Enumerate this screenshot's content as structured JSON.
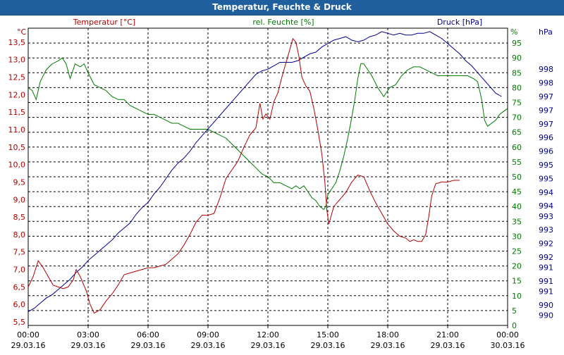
{
  "window": {
    "title": "Temperatur, Feuchte & Druck"
  },
  "chart_data": {
    "type": "line",
    "title": "Temperatur, Feuchte & Druck",
    "grid": true,
    "x": {
      "range": [
        "29.03.16 00:00",
        "30.03.16 00:00"
      ],
      "ticks": [
        {
          "time": "00:00",
          "date": "29.03.16"
        },
        {
          "time": "03:00",
          "date": "29.03.16"
        },
        {
          "time": "06:00",
          "date": "29.03.16"
        },
        {
          "time": "09:00",
          "date": "29.03.16"
        },
        {
          "time": "12:00",
          "date": "29.03.16"
        },
        {
          "time": "15:00",
          "date": "29.03.16"
        },
        {
          "time": "18:00",
          "date": "29.03.16"
        },
        {
          "time": "21:00",
          "date": "29.03.16"
        },
        {
          "time": "00:00",
          "date": "30.03.16"
        }
      ]
    },
    "axes": {
      "left": {
        "label": "Temperatur [°C]",
        "unit": "°C",
        "min": 5.4,
        "max": 13.9,
        "ticks": [
          "5,5",
          "6,0",
          "6,5",
          "7,0",
          "7,5",
          "8,0",
          "8,5",
          "9,0",
          "9,5",
          "10,0",
          "10,5",
          "11,0",
          "11,5",
          "12,0",
          "12,5",
          "13,0",
          "13,5"
        ],
        "tick_values": [
          5.5,
          6.0,
          6.5,
          7.0,
          7.5,
          8.0,
          8.5,
          9.0,
          9.5,
          10.0,
          10.5,
          11.0,
          11.5,
          12.0,
          12.5,
          13.0,
          13.5
        ],
        "color": "#b00000"
      },
      "middle": {
        "label": "rel. Feuchte [%]",
        "unit": "%",
        "min": 0,
        "max": 100,
        "ticks": [
          "0",
          "5",
          "10",
          "15",
          "20",
          "25",
          "30",
          "35",
          "40",
          "45",
          "50",
          "55",
          "60",
          "65",
          "70",
          "75",
          "80",
          "85",
          "90",
          "95"
        ],
        "tick_values": [
          0,
          5,
          10,
          15,
          20,
          25,
          30,
          35,
          40,
          45,
          50,
          55,
          60,
          65,
          70,
          75,
          80,
          85,
          90,
          95
        ],
        "color": "#007a00"
      },
      "right": {
        "label": "Druck [hPa]",
        "unit": "hPa",
        "min": 989.6,
        "max": 998.3,
        "ticks": [
          "990",
          "990",
          "991",
          "991",
          "991",
          "992",
          "992",
          "993",
          "993",
          "994",
          "994",
          "995",
          "995",
          "996",
          "996",
          "997",
          "997",
          "997",
          "998",
          "998"
        ],
        "tick_values": [
          989.9,
          990.2,
          990.6,
          990.9,
          991.3,
          991.6,
          992.0,
          992.4,
          992.8,
          993.1,
          993.5,
          993.9,
          994.3,
          994.7,
          995.1,
          995.5,
          995.9,
          996.3,
          996.7,
          997.1
        ],
        "color": "#00008b"
      }
    },
    "series": [
      {
        "name": "Temperatur [°C]",
        "axis": "left",
        "color": "#b00000",
        "points": [
          [
            0,
            6.5
          ],
          [
            0.25,
            6.8
          ],
          [
            0.5,
            7.25
          ],
          [
            0.75,
            7.05
          ],
          [
            1.0,
            6.8
          ],
          [
            1.25,
            6.55
          ],
          [
            1.5,
            6.5
          ],
          [
            1.75,
            6.45
          ],
          [
            2.0,
            6.5
          ],
          [
            2.25,
            6.7
          ],
          [
            2.4,
            7.0
          ],
          [
            2.6,
            6.8
          ],
          [
            2.9,
            6.4
          ],
          [
            3.1,
            6.0
          ],
          [
            3.3,
            5.75
          ],
          [
            3.6,
            5.85
          ],
          [
            3.9,
            6.1
          ],
          [
            4.2,
            6.3
          ],
          [
            4.5,
            6.55
          ],
          [
            4.8,
            6.85
          ],
          [
            5.1,
            6.9
          ],
          [
            5.4,
            6.95
          ],
          [
            5.7,
            7.0
          ],
          [
            6.0,
            7.05
          ],
          [
            6.3,
            7.05
          ],
          [
            6.6,
            7.1
          ],
          [
            6.9,
            7.15
          ],
          [
            7.2,
            7.3
          ],
          [
            7.5,
            7.45
          ],
          [
            7.8,
            7.7
          ],
          [
            8.1,
            8.0
          ],
          [
            8.4,
            8.35
          ],
          [
            8.7,
            8.55
          ],
          [
            9.0,
            8.55
          ],
          [
            9.3,
            8.6
          ],
          [
            9.6,
            9.05
          ],
          [
            9.9,
            9.6
          ],
          [
            10.2,
            9.85
          ],
          [
            10.5,
            10.1
          ],
          [
            10.8,
            10.5
          ],
          [
            11.1,
            10.85
          ],
          [
            11.4,
            11.05
          ],
          [
            11.6,
            11.75
          ],
          [
            11.75,
            11.3
          ],
          [
            11.9,
            11.45
          ],
          [
            12.1,
            11.3
          ],
          [
            12.3,
            11.8
          ],
          [
            12.5,
            12.05
          ],
          [
            12.7,
            12.5
          ],
          [
            12.9,
            12.9
          ],
          [
            13.1,
            13.3
          ],
          [
            13.25,
            13.6
          ],
          [
            13.4,
            13.5
          ],
          [
            13.55,
            13.1
          ],
          [
            13.7,
            12.5
          ],
          [
            13.9,
            12.25
          ],
          [
            14.1,
            12.1
          ],
          [
            14.3,
            11.6
          ],
          [
            14.5,
            11.0
          ],
          [
            14.7,
            10.3
          ],
          [
            14.85,
            9.5
          ],
          [
            14.95,
            8.7
          ],
          [
            15.05,
            8.3
          ],
          [
            15.3,
            8.8
          ],
          [
            15.6,
            9.0
          ],
          [
            15.9,
            9.2
          ],
          [
            16.2,
            9.5
          ],
          [
            16.5,
            9.7
          ],
          [
            16.8,
            9.65
          ],
          [
            17.1,
            9.25
          ],
          [
            17.4,
            8.9
          ],
          [
            17.7,
            8.6
          ],
          [
            18.0,
            8.3
          ],
          [
            18.3,
            8.1
          ],
          [
            18.6,
            7.95
          ],
          [
            18.9,
            7.9
          ],
          [
            19.1,
            7.8
          ],
          [
            19.3,
            7.85
          ],
          [
            19.5,
            7.8
          ],
          [
            19.7,
            7.8
          ],
          [
            19.9,
            8.0
          ],
          [
            20.05,
            8.5
          ],
          [
            20.2,
            9.1
          ],
          [
            20.4,
            9.45
          ],
          [
            20.7,
            9.5
          ],
          [
            21.0,
            9.5
          ],
          [
            21.3,
            9.55
          ],
          [
            21.6,
            9.55
          ]
        ]
      },
      {
        "name": "rel. Feuchte [%]",
        "axis": "middle",
        "color": "#007a00",
        "points": [
          [
            0,
            80
          ],
          [
            0.2,
            79
          ],
          [
            0.4,
            76
          ],
          [
            0.6,
            82
          ],
          [
            0.9,
            86
          ],
          [
            1.2,
            88
          ],
          [
            1.5,
            89
          ],
          [
            1.7,
            90
          ],
          [
            1.9,
            88
          ],
          [
            2.1,
            83
          ],
          [
            2.35,
            88
          ],
          [
            2.6,
            87
          ],
          [
            2.8,
            88
          ],
          [
            3.0,
            85
          ],
          [
            3.3,
            81
          ],
          [
            3.6,
            80
          ],
          [
            3.9,
            79
          ],
          [
            4.2,
            77
          ],
          [
            4.5,
            76
          ],
          [
            4.8,
            76
          ],
          [
            5.1,
            74
          ],
          [
            5.4,
            73
          ],
          [
            5.7,
            72
          ],
          [
            6.0,
            71
          ],
          [
            6.3,
            71
          ],
          [
            6.6,
            70
          ],
          [
            6.9,
            69
          ],
          [
            7.2,
            68
          ],
          [
            7.5,
            68
          ],
          [
            7.8,
            67
          ],
          [
            8.1,
            66
          ],
          [
            8.4,
            66
          ],
          [
            8.7,
            66
          ],
          [
            9.0,
            66
          ],
          [
            9.3,
            65
          ],
          [
            9.6,
            64
          ],
          [
            9.9,
            63
          ],
          [
            10.2,
            61
          ],
          [
            10.5,
            59
          ],
          [
            10.8,
            57
          ],
          [
            11.1,
            55
          ],
          [
            11.4,
            53
          ],
          [
            11.7,
            51
          ],
          [
            12.0,
            50
          ],
          [
            12.3,
            48
          ],
          [
            12.6,
            48
          ],
          [
            12.9,
            47
          ],
          [
            13.2,
            46
          ],
          [
            13.4,
            47
          ],
          [
            13.6,
            46
          ],
          [
            13.8,
            47
          ],
          [
            14.0,
            45
          ],
          [
            14.2,
            43
          ],
          [
            14.4,
            42
          ],
          [
            14.6,
            40
          ],
          [
            14.8,
            39
          ],
          [
            14.9,
            40
          ],
          [
            15.0,
            44
          ],
          [
            15.2,
            46
          ],
          [
            15.4,
            48
          ],
          [
            15.6,
            52
          ],
          [
            15.8,
            57
          ],
          [
            16.0,
            63
          ],
          [
            16.2,
            70
          ],
          [
            16.35,
            76
          ],
          [
            16.5,
            83
          ],
          [
            16.65,
            88
          ],
          [
            16.8,
            88
          ],
          [
            17.0,
            86
          ],
          [
            17.2,
            84
          ],
          [
            17.5,
            80
          ],
          [
            17.8,
            77
          ],
          [
            18.1,
            80
          ],
          [
            18.4,
            81
          ],
          [
            18.7,
            84
          ],
          [
            19.0,
            86
          ],
          [
            19.3,
            87
          ],
          [
            19.6,
            87
          ],
          [
            19.9,
            86
          ],
          [
            20.2,
            85
          ],
          [
            20.5,
            84
          ],
          [
            20.8,
            84
          ],
          [
            21.1,
            84
          ],
          [
            21.4,
            84
          ],
          [
            21.7,
            84
          ],
          [
            22.0,
            84
          ],
          [
            22.3,
            83
          ],
          [
            22.5,
            82
          ],
          [
            22.7,
            76
          ],
          [
            22.85,
            69
          ],
          [
            23.0,
            67
          ],
          [
            23.2,
            68
          ],
          [
            23.4,
            69
          ],
          [
            23.6,
            71
          ],
          [
            23.8,
            72
          ],
          [
            24.0,
            73
          ]
        ]
      },
      {
        "name": "Druck [hPa]",
        "axis": "right",
        "color": "#00008b",
        "points": [
          [
            0,
            990.0
          ],
          [
            0.3,
            990.1
          ],
          [
            0.6,
            990.25
          ],
          [
            0.9,
            990.4
          ],
          [
            1.2,
            990.5
          ],
          [
            1.5,
            990.65
          ],
          [
            1.8,
            990.8
          ],
          [
            2.1,
            990.95
          ],
          [
            2.4,
            991.15
          ],
          [
            2.7,
            991.3
          ],
          [
            3.0,
            991.5
          ],
          [
            3.3,
            991.65
          ],
          [
            3.6,
            991.8
          ],
          [
            3.9,
            991.95
          ],
          [
            4.2,
            992.1
          ],
          [
            4.5,
            992.3
          ],
          [
            4.8,
            992.45
          ],
          [
            5.1,
            992.6
          ],
          [
            5.4,
            992.85
          ],
          [
            5.7,
            993.05
          ],
          [
            6.0,
            993.2
          ],
          [
            6.3,
            993.45
          ],
          [
            6.6,
            993.65
          ],
          [
            6.9,
            993.9
          ],
          [
            7.2,
            994.15
          ],
          [
            7.5,
            994.35
          ],
          [
            7.8,
            994.5
          ],
          [
            8.1,
            994.7
          ],
          [
            8.4,
            994.95
          ],
          [
            8.7,
            995.15
          ],
          [
            9.0,
            995.35
          ],
          [
            9.3,
            995.55
          ],
          [
            9.6,
            995.75
          ],
          [
            9.9,
            995.95
          ],
          [
            10.2,
            996.15
          ],
          [
            10.5,
            996.35
          ],
          [
            10.8,
            996.55
          ],
          [
            11.1,
            996.75
          ],
          [
            11.4,
            996.95
          ],
          [
            11.7,
            997.05
          ],
          [
            12.0,
            997.1
          ],
          [
            12.3,
            997.2
          ],
          [
            12.6,
            997.3
          ],
          [
            12.9,
            997.3
          ],
          [
            13.2,
            997.3
          ],
          [
            13.5,
            997.35
          ],
          [
            13.8,
            997.45
          ],
          [
            14.1,
            997.55
          ],
          [
            14.4,
            997.6
          ],
          [
            14.7,
            997.75
          ],
          [
            15.0,
            997.85
          ],
          [
            15.3,
            997.95
          ],
          [
            15.6,
            998.0
          ],
          [
            15.9,
            998.05
          ],
          [
            16.2,
            997.95
          ],
          [
            16.5,
            997.9
          ],
          [
            16.8,
            997.95
          ],
          [
            17.1,
            998.05
          ],
          [
            17.4,
            998.1
          ],
          [
            17.7,
            998.2
          ],
          [
            18.0,
            998.15
          ],
          [
            18.3,
            998.1
          ],
          [
            18.6,
            998.15
          ],
          [
            18.9,
            998.1
          ],
          [
            19.2,
            998.1
          ],
          [
            19.5,
            998.15
          ],
          [
            19.8,
            998.15
          ],
          [
            20.1,
            998.2
          ],
          [
            20.4,
            998.1
          ],
          [
            20.7,
            998.0
          ],
          [
            21.0,
            997.85
          ],
          [
            21.3,
            997.7
          ],
          [
            21.6,
            997.55
          ],
          [
            21.9,
            997.35
          ],
          [
            22.2,
            997.2
          ],
          [
            22.5,
            997.0
          ],
          [
            22.8,
            996.8
          ],
          [
            23.1,
            996.6
          ],
          [
            23.4,
            996.4
          ],
          [
            23.7,
            996.3
          ]
        ]
      }
    ]
  }
}
